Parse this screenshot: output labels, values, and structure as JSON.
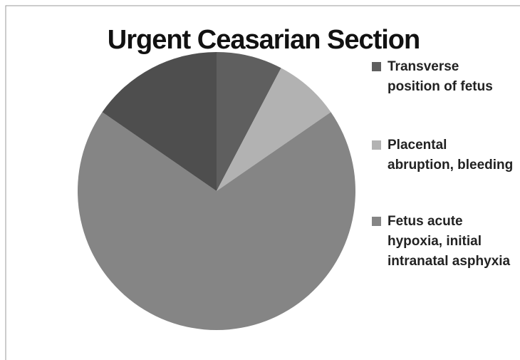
{
  "chart_data": {
    "type": "pie",
    "title": "Urgent Ceasarian Section",
    "categories": [
      "Transverse position of fetus",
      "Placental abruption, bleeding",
      "Fetus acute hypoxia, initial intranatal asphyxia",
      null
    ],
    "values": [
      1,
      1,
      9,
      2
    ],
    "colors": [
      "#5f5f5f",
      "#b2b2b2",
      "#858585",
      "#4e4e4e"
    ],
    "legend": "right"
  }
}
